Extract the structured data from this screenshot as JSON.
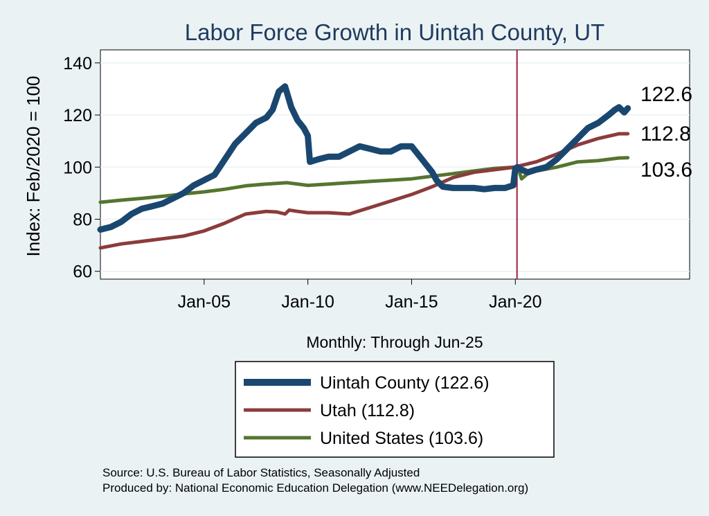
{
  "chart_data": {
    "type": "line",
    "title": "Labor Force Growth in Uintah  County, UT",
    "ylabel": "Index: Feb/2020 = 100",
    "xlabel": "Monthly: Through Jun-25",
    "ylim": [
      57,
      145
    ],
    "xlim": [
      2000.0,
      2028.4
    ],
    "y_ticks": [
      60,
      80,
      100,
      120,
      140
    ],
    "x_ticks": [
      {
        "label": "Jan-05",
        "value": 2005.0
      },
      {
        "label": "Jan-10",
        "value": 2010.0
      },
      {
        "label": "Jan-15",
        "value": 2015.0
      },
      {
        "label": "Jan-20",
        "value": 2020.0
      }
    ],
    "vline": 2020.08,
    "end_labels": [
      "122.6",
      "112.8",
      "103.6"
    ],
    "series": [
      {
        "name": "Uintah  County (122.6)",
        "color": "#1a476f",
        "x": [
          2000.0,
          2000.5,
          2001.0,
          2001.5,
          2002.0,
          2002.5,
          2003.0,
          2003.5,
          2004.0,
          2004.5,
          2005.0,
          2005.5,
          2006.0,
          2006.5,
          2007.0,
          2007.5,
          2008.0,
          2008.3,
          2008.6,
          2008.9,
          2009.2,
          2009.5,
          2009.8,
          2010.0,
          2010.1,
          2010.5,
          2011.0,
          2011.5,
          2012.0,
          2012.5,
          2013.0,
          2013.5,
          2014.0,
          2014.5,
          2015.0,
          2015.5,
          2016.0,
          2016.2,
          2016.5,
          2017.0,
          2017.5,
          2018.0,
          2018.5,
          2019.0,
          2019.5,
          2019.9,
          2020.0,
          2020.1,
          2020.3,
          2020.6,
          2021.0,
          2021.5,
          2022.0,
          2022.5,
          2023.0,
          2023.5,
          2024.0,
          2024.5,
          2024.8,
          2025.0,
          2025.25,
          2025.42
        ],
        "values": [
          76.0,
          77.0,
          79.0,
          82.0,
          84.0,
          85.0,
          86.0,
          88.0,
          90.0,
          93.0,
          95.0,
          97.0,
          103.0,
          109.0,
          113.0,
          117.0,
          119.0,
          122.0,
          129.0,
          131.0,
          123.0,
          118.0,
          115.0,
          112.0,
          102.0,
          103.0,
          104.0,
          104.0,
          106.0,
          108.0,
          107.0,
          106.0,
          106.0,
          108.0,
          108.0,
          103.0,
          98.0,
          95.0,
          92.5,
          92.0,
          92.0,
          92.0,
          91.5,
          92.0,
          92.0,
          93.0,
          99.5,
          100.0,
          99.0,
          98.0,
          99.0,
          100.0,
          103.0,
          107.0,
          111.0,
          115.0,
          117.0,
          120.0,
          122.0,
          123.0,
          121.0,
          122.6
        ]
      },
      {
        "name": "Utah (112.8)",
        "color": "#8c3b3b",
        "x": [
          2000.0,
          2001.0,
          2002.0,
          2003.0,
          2004.0,
          2005.0,
          2006.0,
          2007.0,
          2008.0,
          2008.5,
          2008.9,
          2009.1,
          2009.5,
          2010.0,
          2011.0,
          2012.0,
          2013.0,
          2014.0,
          2015.0,
          2016.0,
          2017.0,
          2018.0,
          2019.0,
          2020.0,
          2020.2,
          2021.0,
          2022.0,
          2023.0,
          2024.0,
          2025.0,
          2025.42
        ],
        "values": [
          69.0,
          70.5,
          71.5,
          72.5,
          73.5,
          75.5,
          78.5,
          82.0,
          83.0,
          82.8,
          82.0,
          83.5,
          83.0,
          82.5,
          82.5,
          82.0,
          84.5,
          87.0,
          89.5,
          92.5,
          96.0,
          98.0,
          99.0,
          100.0,
          100.5,
          102.0,
          105.0,
          108.5,
          111.0,
          112.8,
          112.8
        ]
      },
      {
        "name": "United States (103.6)",
        "color": "#55752f",
        "x": [
          2000.0,
          2001.0,
          2002.0,
          2003.0,
          2004.0,
          2005.0,
          2006.0,
          2007.0,
          2008.0,
          2009.0,
          2010.0,
          2011.0,
          2012.0,
          2013.0,
          2014.0,
          2015.0,
          2016.0,
          2017.0,
          2018.0,
          2019.0,
          2020.0,
          2020.1,
          2020.3,
          2020.6,
          2021.0,
          2022.0,
          2023.0,
          2024.0,
          2025.0,
          2025.42
        ],
        "values": [
          86.5,
          87.3,
          88.0,
          88.8,
          89.7,
          90.5,
          91.5,
          92.8,
          93.5,
          94.0,
          93.0,
          93.5,
          94.0,
          94.5,
          95.0,
          95.5,
          96.5,
          97.5,
          98.5,
          99.5,
          100.0,
          100.5,
          95.5,
          97.5,
          98.5,
          100.0,
          102.0,
          102.5,
          103.5,
          103.6
        ]
      }
    ]
  },
  "source_line": "Source: U.S. Bureau of Labor Statistics, Seasonally Adjusted",
  "produced_line": "Produced by: National Economic Education Delegation (www.NEEDelegation.org)",
  "colors": {
    "background": "#eaf2f3",
    "plot_bg": "#ffffff",
    "grid": "#eaf2f3",
    "vline": "#a01d3a"
  }
}
